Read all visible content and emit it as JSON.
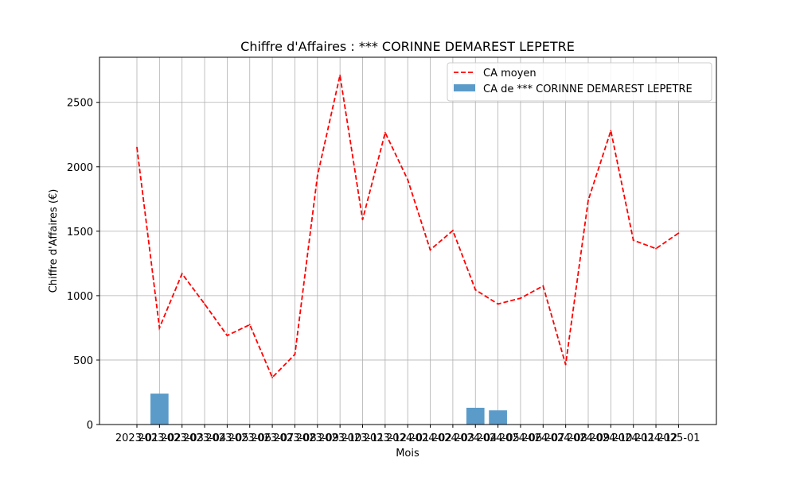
{
  "chart_data": {
    "type": "bar",
    "title": "Chiffre d'Affaires : *** CORINNE DEMAREST LEPETRE",
    "xlabel": "Mois",
    "ylabel": "Chiffre d'Affaires (€)",
    "ylim": [
      0,
      2850
    ],
    "yticks": [
      0,
      500,
      1000,
      1500,
      2000,
      2500
    ],
    "grid": true,
    "legend_position": "top-right",
    "categories": [
      "2023-01",
      "2023-02",
      "2023-03",
      "2023-04",
      "2023-05",
      "2023-06",
      "2023-07",
      "2023-08",
      "2023-09",
      "2023-10",
      "2023-11",
      "2023-12",
      "2024-01",
      "2024-02",
      "2024-03",
      "2024-04",
      "2024-05",
      "2024-06",
      "2024-07",
      "2024-08",
      "2024-09",
      "2024-10",
      "2024-11",
      "2024-12",
      "2025-01"
    ],
    "series": [
      {
        "name": "CA moyen",
        "type": "line",
        "style": "dashed",
        "color": "#ff0000",
        "values": [
          2150,
          750,
          1170,
          935,
          690,
          775,
          365,
          545,
          1930,
          2710,
          1590,
          2265,
          1900,
          1355,
          1505,
          1045,
          935,
          980,
          1075,
          465,
          1740,
          2280,
          1430,
          1365,
          1485
        ]
      },
      {
        "name": "CA de *** CORINNE DEMAREST LEPETRE",
        "type": "bar",
        "color": "#5b9bc9",
        "values": [
          0,
          240,
          0,
          0,
          0,
          0,
          0,
          0,
          0,
          0,
          0,
          0,
          0,
          0,
          0,
          130,
          110,
          0,
          0,
          0,
          0,
          0,
          0,
          0,
          0
        ]
      }
    ]
  }
}
